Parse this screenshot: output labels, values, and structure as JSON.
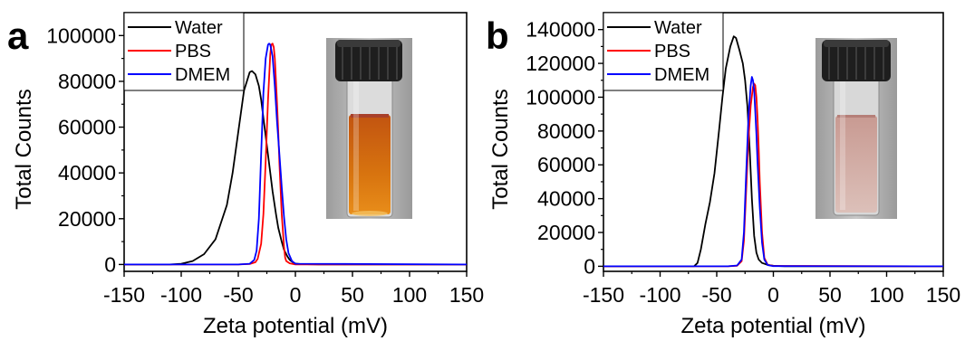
{
  "panels": [
    {
      "letter": "a",
      "inset_photo": "vial-orange"
    },
    {
      "letter": "b",
      "inset_photo": "vial-pink"
    }
  ],
  "chart_data": [
    {
      "type": "line",
      "panel": "a",
      "xlabel": "Zeta potential (mV)",
      "ylabel": "Total Counts",
      "xlim": [
        -150,
        150
      ],
      "ylim": [
        -3000,
        110000
      ],
      "xticks": [
        -150,
        -100,
        -50,
        0,
        50,
        100,
        150
      ],
      "yticks": [
        0,
        20000,
        40000,
        60000,
        80000,
        100000
      ],
      "legend_position": "top-left",
      "grid": false,
      "series": [
        {
          "name": "Water",
          "color": "#000000",
          "x": [
            -150,
            -110,
            -100,
            -90,
            -80,
            -70,
            -60,
            -55,
            -50,
            -45,
            -40,
            -38,
            -35,
            -32,
            -30,
            -28,
            -25,
            -22,
            -20,
            -17,
            -15,
            -12,
            -10,
            -7,
            -5,
            -2,
            0,
            5,
            20,
            150
          ],
          "y": [
            0,
            0,
            300,
            1500,
            4500,
            11000,
            26000,
            40000,
            58000,
            76000,
            84000,
            84500,
            83000,
            78000,
            72000,
            64000,
            52000,
            40000,
            32000,
            22000,
            16000,
            10000,
            6500,
            3500,
            2000,
            900,
            400,
            150,
            0,
            0
          ]
        },
        {
          "name": "PBS",
          "color": "#ff0000",
          "x": [
            -150,
            -50,
            -40,
            -35,
            -33,
            -30,
            -28,
            -26,
            -24,
            -22,
            -21,
            -20,
            -19,
            -18,
            -16,
            -15,
            -14,
            -12,
            -10,
            -9,
            -8,
            -5,
            0,
            150
          ],
          "y": [
            0,
            0,
            200,
            1000,
            2500,
            9000,
            22000,
            45000,
            72000,
            92000,
            96000,
            96500,
            95000,
            90000,
            70000,
            58000,
            44000,
            22000,
            8000,
            3000,
            1500,
            500,
            0,
            0
          ]
        },
        {
          "name": "DMEM",
          "color": "#0000ff",
          "x": [
            -150,
            -50,
            -40,
            -36,
            -34,
            -32,
            -30,
            -28,
            -26,
            -24,
            -23,
            -22,
            -20,
            -18,
            -16,
            -14,
            -12,
            -10,
            -8,
            -6,
            -3,
            0,
            150
          ],
          "y": [
            0,
            0,
            300,
            2000,
            6000,
            20000,
            48000,
            75000,
            90000,
            96000,
            96500,
            96000,
            91000,
            78000,
            62000,
            48000,
            34000,
            21000,
            11000,
            5000,
            1500,
            300,
            0
          ]
        }
      ]
    },
    {
      "type": "line",
      "panel": "b",
      "xlabel": "Zeta potential (mV)",
      "ylabel": "Total Counts",
      "xlim": [
        -150,
        150
      ],
      "ylim": [
        -3000,
        150000
      ],
      "xticks": [
        -150,
        -100,
        -50,
        0,
        50,
        100,
        150
      ],
      "yticks": [
        0,
        20000,
        40000,
        60000,
        80000,
        100000,
        120000,
        140000
      ],
      "legend_position": "top-left",
      "grid": false,
      "series": [
        {
          "name": "Water",
          "color": "#000000",
          "x": [
            -150,
            -70,
            -67,
            -64,
            -60,
            -56,
            -52,
            -48,
            -45,
            -42,
            -38,
            -35,
            -33,
            -30,
            -27,
            -25,
            -23,
            -21,
            -19,
            -17,
            -15,
            -13,
            -10,
            -5,
            0,
            10,
            150
          ],
          "y": [
            0,
            0,
            2000,
            10000,
            25000,
            38000,
            55000,
            80000,
            100000,
            117000,
            130000,
            136000,
            135000,
            128000,
            120000,
            110000,
            95000,
            70000,
            40000,
            18000,
            8000,
            4000,
            2000,
            800,
            300,
            0,
            0
          ]
        },
        {
          "name": "PBS",
          "color": "#ff0000",
          "x": [
            -150,
            -40,
            -32,
            -28,
            -26,
            -24,
            -22,
            -20,
            -18,
            -17,
            -16,
            -15,
            -14,
            -13,
            -12,
            -10,
            -8,
            -5,
            0,
            150
          ],
          "y": [
            0,
            0,
            300,
            3000,
            15000,
            45000,
            75000,
            95000,
            106000,
            108000,
            107000,
            100000,
            88000,
            70000,
            50000,
            20000,
            5000,
            800,
            200,
            0
          ]
        },
        {
          "name": "DMEM",
          "color": "#0000ff",
          "x": [
            -150,
            -40,
            -32,
            -28,
            -26,
            -24,
            -22,
            -20,
            -19,
            -18,
            -17,
            -16,
            -15,
            -14,
            -12,
            -10,
            -8,
            -5,
            0,
            150
          ],
          "y": [
            0,
            0,
            500,
            4000,
            20000,
            55000,
            88000,
            107000,
            112000,
            110000,
            104000,
            92000,
            78000,
            62000,
            35000,
            14000,
            4000,
            700,
            100,
            0
          ]
        }
      ]
    }
  ]
}
